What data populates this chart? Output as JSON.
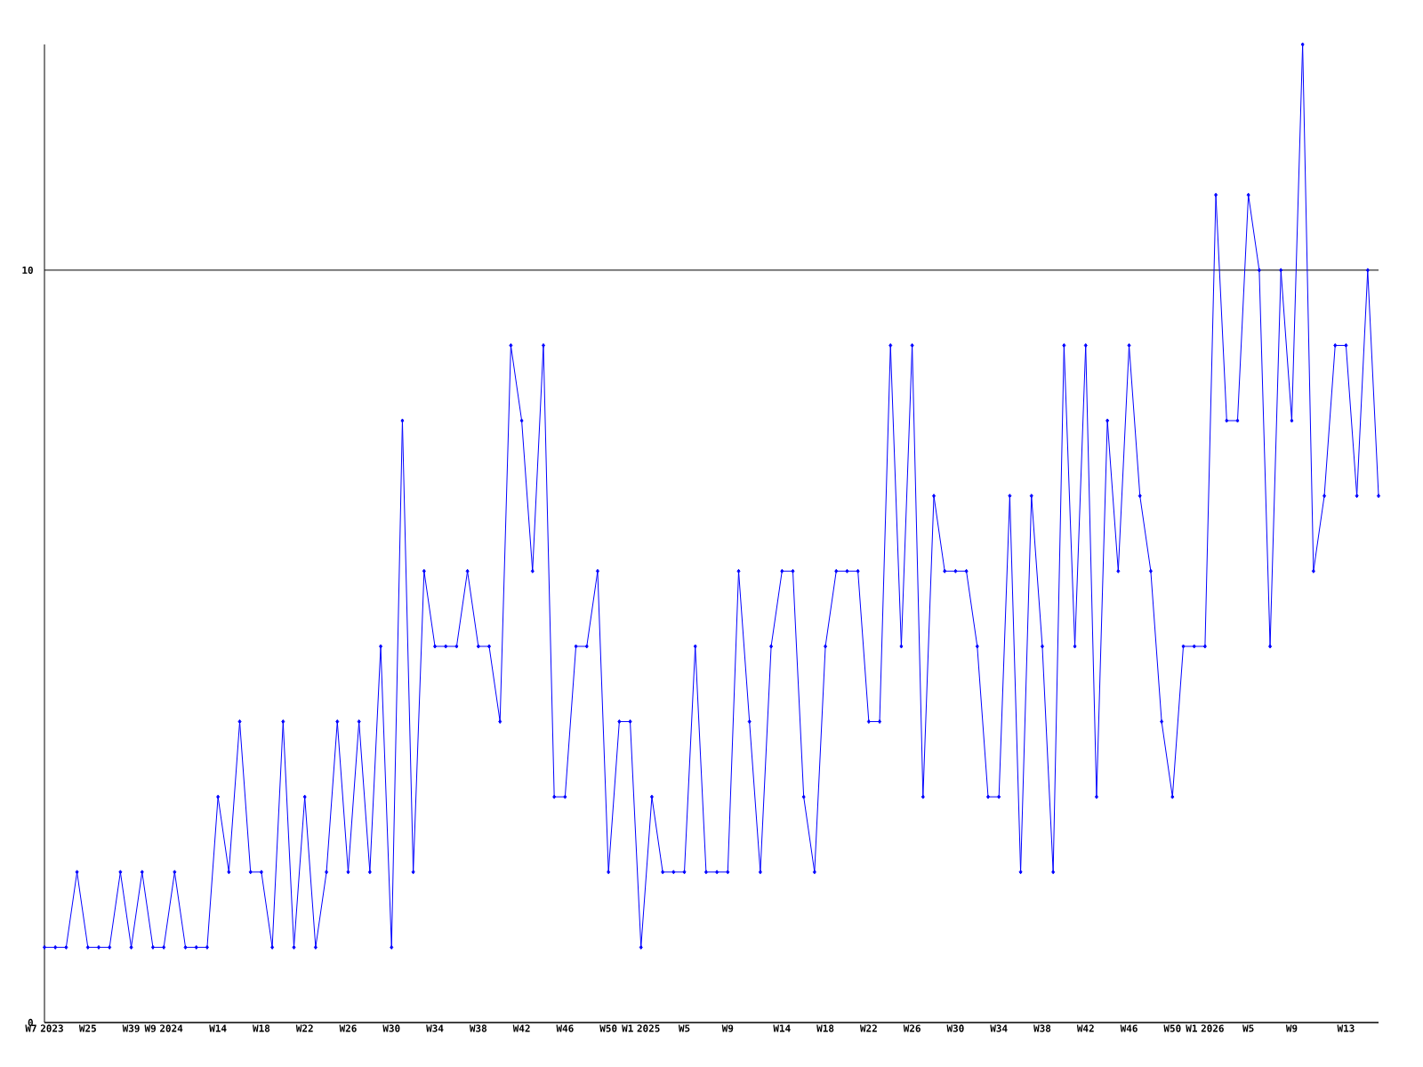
{
  "chart_data": {
    "type": "line",
    "categories": [
      "W7 2023",
      null,
      null,
      null,
      "W25",
      null,
      null,
      null,
      "W39",
      null,
      null,
      "W9 2024",
      null,
      null,
      null,
      null,
      "W14",
      null,
      null,
      null,
      "W18",
      null,
      null,
      null,
      "W22",
      null,
      null,
      null,
      "W26",
      null,
      null,
      null,
      "W30",
      null,
      null,
      null,
      "W34",
      null,
      null,
      null,
      "W38",
      null,
      null,
      null,
      "W42",
      null,
      null,
      null,
      "W46",
      null,
      null,
      null,
      "W50",
      null,
      null,
      "W1 2025",
      null,
      null,
      null,
      "W5",
      null,
      null,
      null,
      "W9",
      null,
      null,
      null,
      null,
      "W14",
      null,
      null,
      null,
      "W18",
      null,
      null,
      null,
      "W22",
      null,
      null,
      null,
      "W26",
      null,
      null,
      null,
      "W30",
      null,
      null,
      null,
      "W34",
      null,
      null,
      null,
      "W38",
      null,
      null,
      null,
      "W42",
      null,
      null,
      null,
      "W46",
      null,
      null,
      null,
      "W50",
      null,
      null,
      "W1 2026",
      null,
      null,
      null,
      "W5",
      null,
      null,
      null,
      "W9",
      null,
      null,
      null,
      null,
      "W13",
      null,
      null,
      null
    ],
    "values": [
      1,
      1,
      1,
      2,
      1,
      1,
      1,
      2,
      1,
      2,
      1,
      1,
      2,
      1,
      1,
      1,
      3,
      2,
      4,
      2,
      2,
      1,
      4,
      1,
      3,
      1,
      2,
      4,
      2,
      4,
      2,
      5,
      1,
      8,
      2,
      6,
      5,
      5,
      5,
      6,
      5,
      5,
      4,
      9,
      8,
      6,
      9,
      3,
      3,
      5,
      5,
      6,
      2,
      4,
      4,
      1,
      3,
      2,
      2,
      2,
      5,
      2,
      2,
      2,
      6,
      4,
      2,
      5,
      6,
      6,
      3,
      2,
      5,
      6,
      6,
      6,
      4,
      4,
      9,
      5,
      9,
      3,
      7,
      6,
      6,
      6,
      5,
      3,
      3,
      7,
      2,
      7,
      5,
      2,
      9,
      5,
      9,
      3,
      8,
      6,
      9,
      7,
      6,
      4,
      3,
      5,
      5,
      5,
      11,
      8,
      8,
      11,
      10,
      5,
      10,
      8,
      13,
      6,
      7,
      9,
      9,
      7,
      10,
      7
    ],
    "color": "#0000ff",
    "marker": "diamond",
    "line_style": "solid",
    "ylim": [
      0,
      13
    ],
    "yticks": [
      0,
      10
    ],
    "grid": "y"
  }
}
